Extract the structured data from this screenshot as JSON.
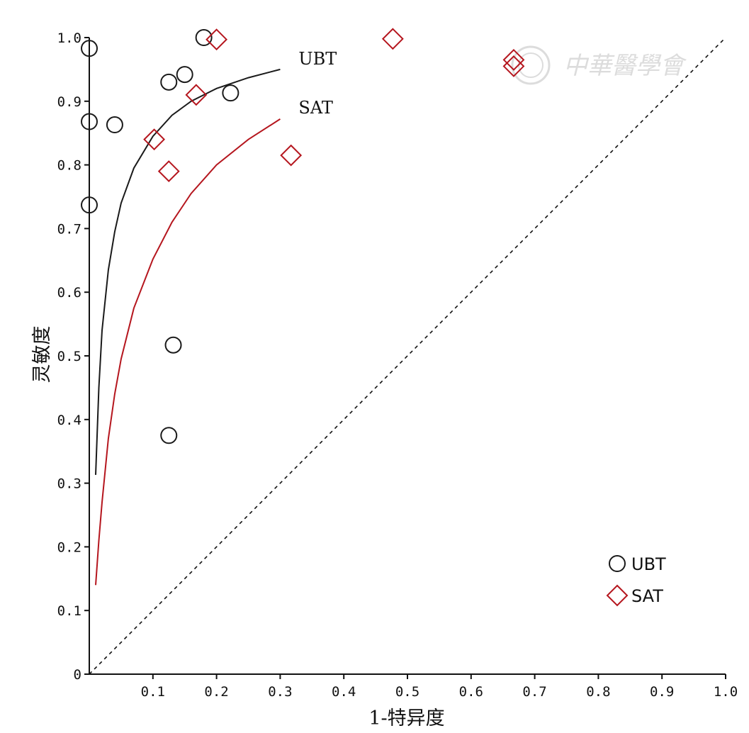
{
  "colors": {
    "ubt": "#1a1a1a",
    "sat": "#b5161e",
    "axis": "#111111",
    "diagonal": "#111111",
    "watermark": "#d9d9d9"
  },
  "watermark": "中華醫學會",
  "chart_data": {
    "type": "scatter",
    "title": "",
    "xlabel": "1-特异度",
    "ylabel": "灵敏度",
    "xlim": [
      0,
      1
    ],
    "ylim": [
      0,
      1
    ],
    "x_tick_labels": [
      "0.1",
      "0.2",
      "0.3",
      "0.4",
      "0.5",
      "0.6",
      "0.7",
      "0.8",
      "0.9",
      "1.0"
    ],
    "y_tick_labels": [
      "0",
      "0.1",
      "0.2",
      "0.3",
      "0.4",
      "0.5",
      "0.6",
      "0.7",
      "0.8",
      "0.9",
      "1.0"
    ],
    "grid": false,
    "legend_position": "bottom-right",
    "diagonal": {
      "style": "dashed",
      "from": [
        0,
        0
      ],
      "to": [
        1,
        1
      ]
    },
    "series": [
      {
        "name": "UBT",
        "marker": "circle",
        "points": [
          {
            "x": 0.0,
            "y": 0.983
          },
          {
            "x": 0.18,
            "y": 1.0
          },
          {
            "x": 0.125,
            "y": 0.93
          },
          {
            "x": 0.15,
            "y": 0.942
          },
          {
            "x": 0.222,
            "y": 0.913
          },
          {
            "x": 0.0,
            "y": 0.868
          },
          {
            "x": 0.04,
            "y": 0.863
          },
          {
            "x": 0.0,
            "y": 0.737
          },
          {
            "x": 0.132,
            "y": 0.517
          },
          {
            "x": 0.125,
            "y": 0.375
          }
        ],
        "sroc_curve": {
          "label": "UBT",
          "points": [
            [
              0.01,
              0.313
            ],
            [
              0.015,
              0.45
            ],
            [
              0.02,
              0.54
            ],
            [
              0.03,
              0.635
            ],
            [
              0.04,
              0.695
            ],
            [
              0.05,
              0.74
            ],
            [
              0.07,
              0.795
            ],
            [
              0.1,
              0.845
            ],
            [
              0.13,
              0.878
            ],
            [
              0.16,
              0.9
            ],
            [
              0.2,
              0.92
            ],
            [
              0.25,
              0.937
            ],
            [
              0.3,
              0.95
            ]
          ]
        }
      },
      {
        "name": "SAT",
        "marker": "diamond",
        "points": [
          {
            "x": 0.2,
            "y": 0.997
          },
          {
            "x": 0.477,
            "y": 0.998
          },
          {
            "x": 0.667,
            "y": 0.965
          },
          {
            "x": 0.667,
            "y": 0.955
          },
          {
            "x": 0.168,
            "y": 0.91
          },
          {
            "x": 0.102,
            "y": 0.84
          },
          {
            "x": 0.125,
            "y": 0.79
          },
          {
            "x": 0.317,
            "y": 0.815
          }
        ],
        "sroc_curve": {
          "label": "SAT",
          "points": [
            [
              0.01,
              0.14
            ],
            [
              0.015,
              0.21
            ],
            [
              0.02,
              0.27
            ],
            [
              0.03,
              0.37
            ],
            [
              0.04,
              0.44
            ],
            [
              0.05,
              0.495
            ],
            [
              0.07,
              0.575
            ],
            [
              0.1,
              0.652
            ],
            [
              0.13,
              0.71
            ],
            [
              0.16,
              0.755
            ],
            [
              0.2,
              0.8
            ],
            [
              0.25,
              0.84
            ],
            [
              0.3,
              0.872
            ]
          ]
        }
      }
    ]
  }
}
